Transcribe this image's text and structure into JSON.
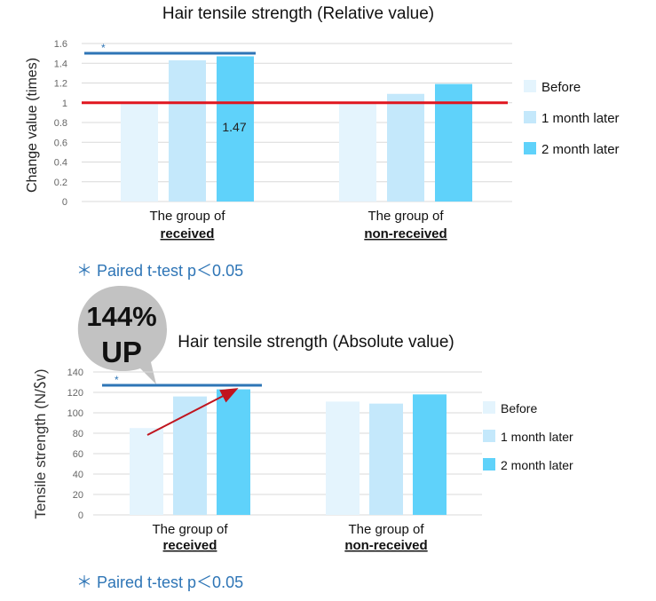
{
  "colors": {
    "before": "#e4f4fd",
    "month1": "#c4e8fb",
    "month2": "#5fd2fa",
    "significance_line": "#2e75b6",
    "reference_line": "#e0161f",
    "arrow": "#c0151f",
    "gridline": "#d9d9d9",
    "footnote": "#2e75b6",
    "badge": "#c2c2c2"
  },
  "chart_data": [
    {
      "type": "bar",
      "title": "Hair tensile strength (Relative value)",
      "ylabel": "Change value (times)",
      "xlabel": "",
      "ylim": [
        0,
        1.6
      ],
      "yticks": [
        "1.6",
        "1.4",
        "1.2",
        "1",
        "0.8",
        "0.6",
        "0.4",
        "0.2",
        "0"
      ],
      "categories": [
        {
          "line1": "The group of",
          "line2": "received"
        },
        {
          "line1": "The group of",
          "line2": "non-received"
        }
      ],
      "series": [
        {
          "name": "Before",
          "values": [
            1.0,
            1.0
          ]
        },
        {
          "name": "1 month later",
          "values": [
            1.43,
            1.09
          ]
        },
        {
          "name": "2 month later",
          "values": [
            1.47,
            1.19
          ]
        }
      ],
      "reference_line": 1.0,
      "data_label": "1.47",
      "significance_marker": "*",
      "footnote": "＊ Paired t-test  p＜0.05",
      "legend": [
        "Before",
        "1 month later",
        "2 month later"
      ],
      "legend_position": "right"
    },
    {
      "type": "bar",
      "title": "Hair tensile strength (Absolute value)",
      "ylabel": "Tensile strength (N/㏜)",
      "xlabel": "",
      "ylim": [
        0,
        140
      ],
      "yticks": [
        "140",
        "120",
        "100",
        "80",
        "60",
        "40",
        "20",
        "0"
      ],
      "categories": [
        {
          "line1": "The group of",
          "line2": "received"
        },
        {
          "line1": "The group of",
          "line2": "non-received"
        }
      ],
      "series": [
        {
          "name": "Before",
          "values": [
            85,
            111
          ]
        },
        {
          "name": "1 month later",
          "values": [
            116,
            109
          ]
        },
        {
          "name": "2 month later",
          "values": [
            123,
            118
          ]
        }
      ],
      "significance_marker": "*",
      "badge": {
        "line1": "144%",
        "line2": "UP"
      },
      "footnote": "＊ Paired t-test  p＜0.05",
      "legend": [
        "Before",
        "1 month later",
        "2 month later"
      ],
      "legend_position": "right"
    }
  ]
}
